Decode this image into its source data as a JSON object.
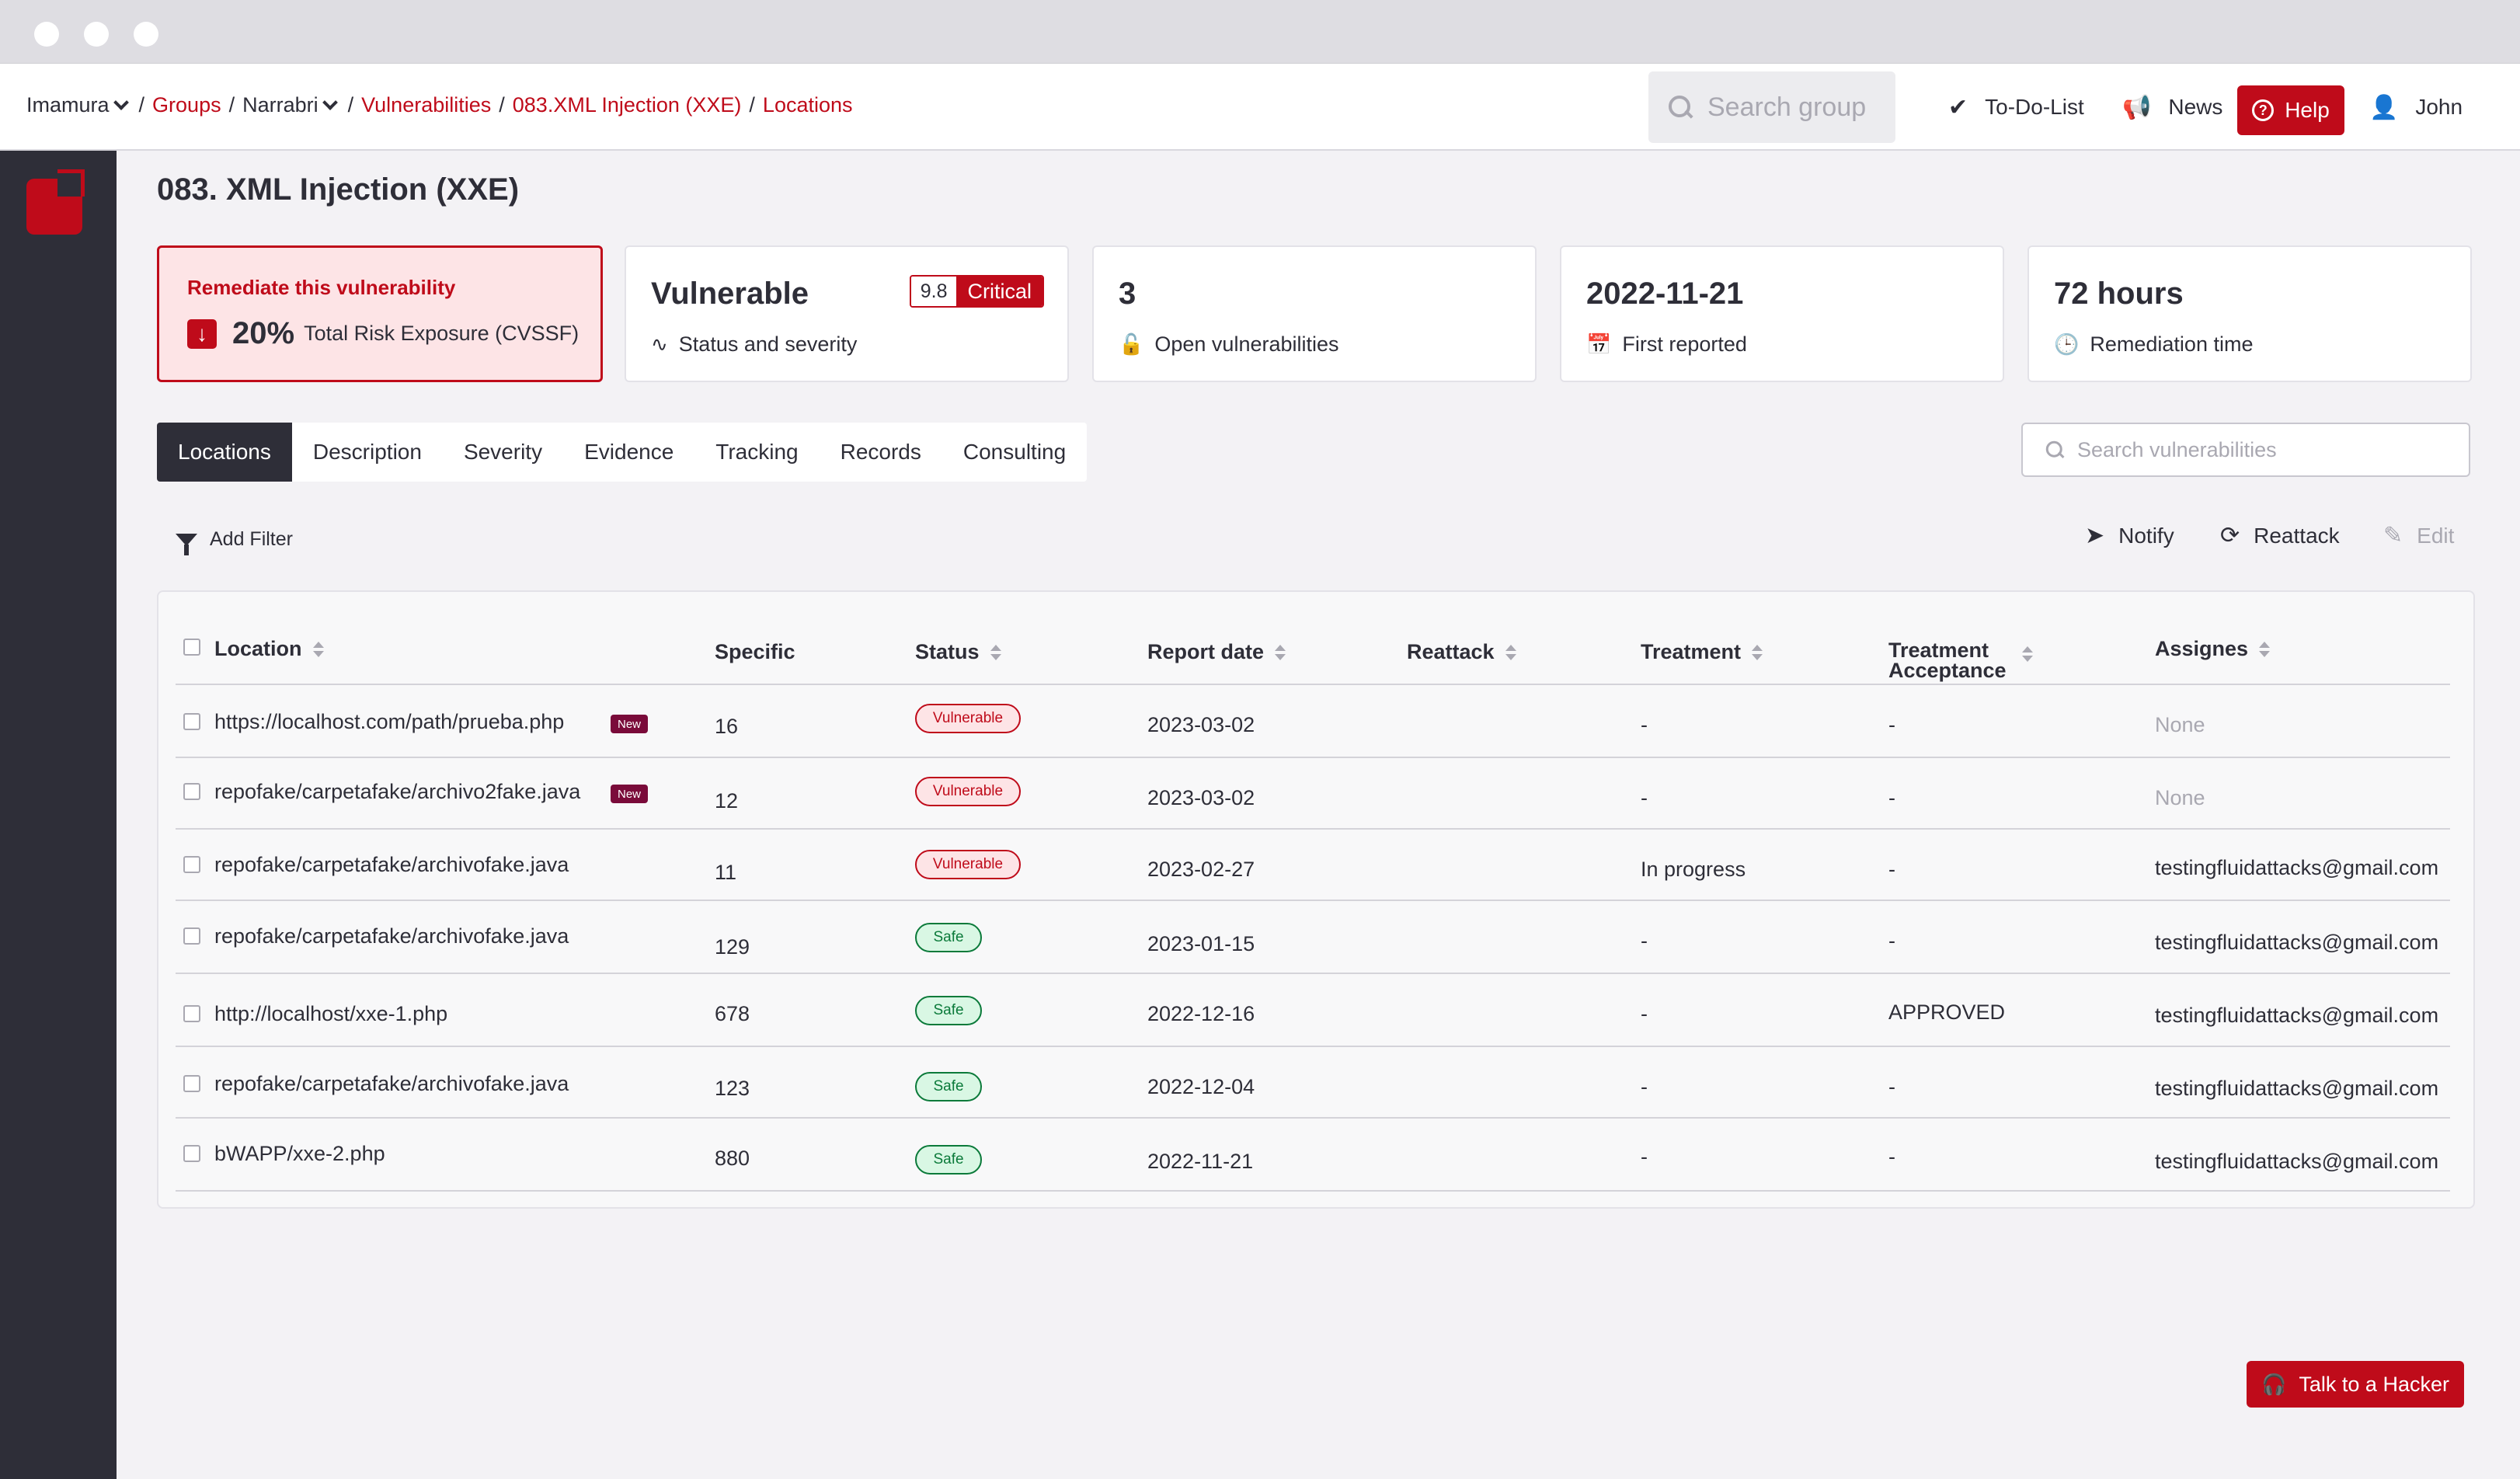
{
  "breadcrumb": {
    "org": "Imamura",
    "groups": "Groups",
    "group": "Narrabri",
    "vulnerabilities": "Vulnerabilities",
    "finding": "083.XML Injection (XXE)",
    "current": "Locations"
  },
  "topbar": {
    "search_placeholder": "Search group",
    "todo": "To-Do-List",
    "news": "News",
    "help": "Help",
    "user": "John"
  },
  "page": {
    "title": "083. XML Injection (XXE)"
  },
  "indicators": {
    "remediate": {
      "title": "Remediate this vulnerability",
      "value": "20%",
      "label": "Total Risk Exposure (CVSSF)"
    },
    "status": {
      "value": "Vulnerable",
      "label": "Status and severity",
      "score": "9.8",
      "level": "Critical"
    },
    "open": {
      "value": "3",
      "label": "Open vulnerabilities"
    },
    "reported": {
      "value": "2022-11-21",
      "label": "First reported"
    },
    "remediation": {
      "value": "72 hours",
      "label": "Remediation time"
    }
  },
  "tabs": [
    "Locations",
    "Description",
    "Severity",
    "Evidence",
    "Tracking",
    "Records",
    "Consulting"
  ],
  "vuln_search_placeholder": "Search vulnerabilities",
  "toolbar": {
    "add_filter": "Add Filter",
    "notify": "Notify",
    "reattack": "Reattack",
    "edit": "Edit"
  },
  "table": {
    "headers": {
      "location": "Location",
      "specific": "Specific",
      "status": "Status",
      "report_date": "Report date",
      "reattack": "Reattack",
      "treatment": "Treatment",
      "treatment_acceptance_1": "Treatment",
      "treatment_acceptance_2": "Acceptance",
      "assignees": "Assignes"
    },
    "new_badge": "New",
    "rows": [
      {
        "location": "https://localhost.com/path/prueba.php",
        "specific": "16",
        "status": "Vulnerable",
        "date": "2023-03-02",
        "treatment": "-",
        "acceptance": "-",
        "assignee": "None"
      },
      {
        "location": "repofake/carpetafake/archivo2fake.java",
        "specific": "12",
        "status": "Vulnerable",
        "date": "2023-03-02",
        "treatment": "-",
        "acceptance": "-",
        "assignee": "None"
      },
      {
        "location": "repofake/carpetafake/archivofake.java",
        "specific": "11",
        "status": "Vulnerable",
        "date": "2023-02-27",
        "treatment": "In progress",
        "acceptance": "-",
        "assignee": "testingfluidattacks@gmail.com"
      },
      {
        "location": "repofake/carpetafake/archivofake.java",
        "specific": "129",
        "status": "Safe",
        "date": "2023-01-15",
        "treatment": "-",
        "acceptance": "-",
        "assignee": "testingfluidattacks@gmail.com"
      },
      {
        "location": "http://localhost/xxe-1.php",
        "specific": "678",
        "status": "Safe",
        "date": "2022-12-16",
        "treatment": "-",
        "acceptance": "APPROVED",
        "assignee": "testingfluidattacks@gmail.com"
      },
      {
        "location": "repofake/carpetafake/archivofake.java",
        "specific": "123",
        "status": "Safe",
        "date": "2022-12-04",
        "treatment": "-",
        "acceptance": "-",
        "assignee": "testingfluidattacks@gmail.com"
      },
      {
        "location": "bWAPP/xxe-2.php",
        "specific": "880",
        "status": "Safe",
        "date": "2022-11-21",
        "treatment": "-",
        "acceptance": "-",
        "assignee": "testingfluidattacks@gmail.com"
      }
    ]
  },
  "talk_button": "Talk to a Hacker",
  "colors": {
    "accent": "#bf0b1a",
    "sidebar": "#2e2e38",
    "safe": "#0b7a3a"
  }
}
